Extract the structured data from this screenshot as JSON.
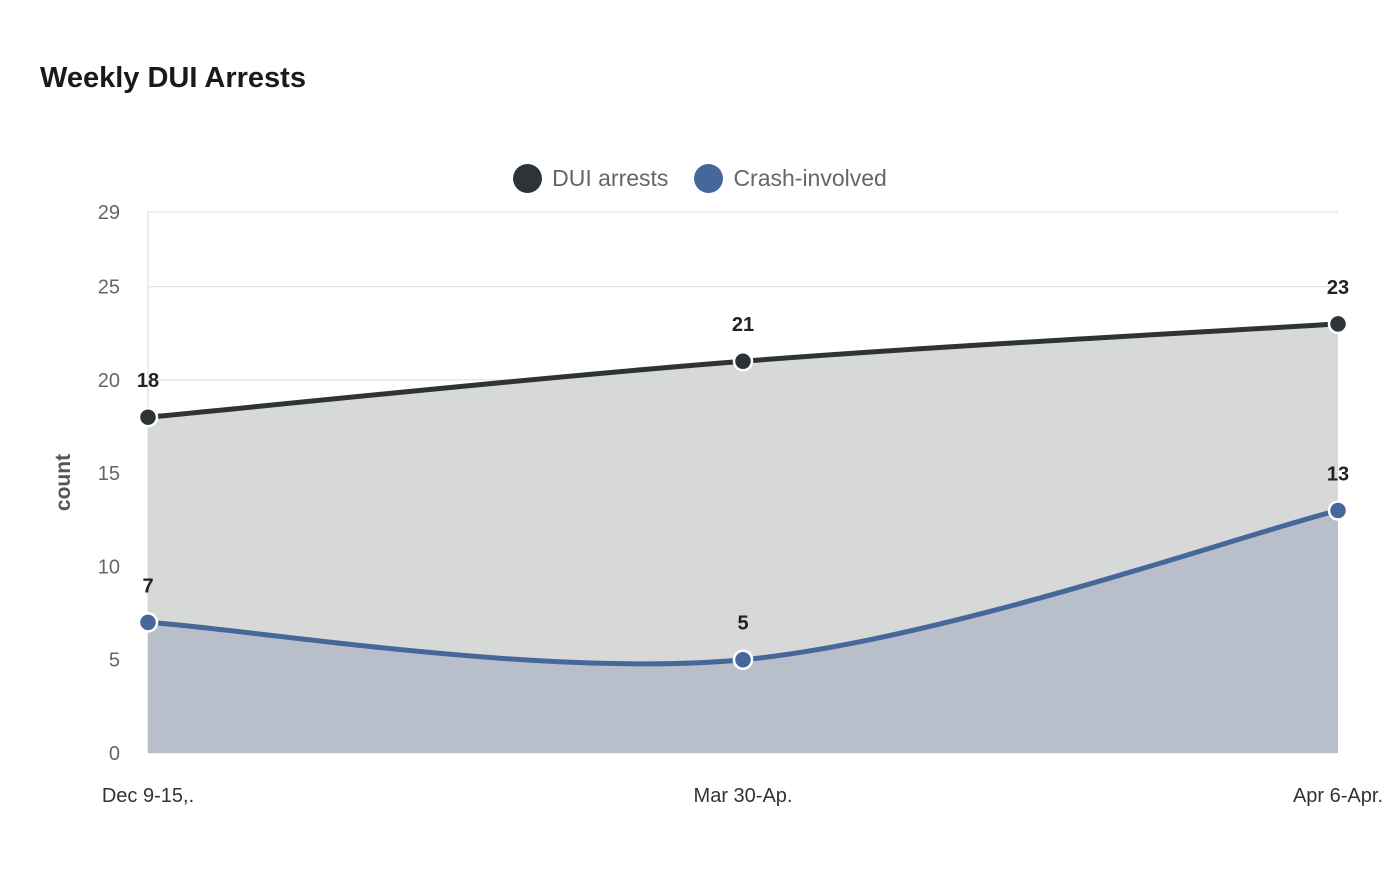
{
  "chart_data": {
    "type": "area",
    "title": "Weekly DUI Arrests",
    "xlabel": "",
    "ylabel": "count",
    "categories": [
      "Dec 9-15,.",
      "Mar 30-Ap.",
      "Apr 6-Apr."
    ],
    "ylim": [
      0,
      29
    ],
    "yticks": [
      0,
      5,
      10,
      15,
      20,
      25,
      29
    ],
    "grid": true,
    "legend_position": "top-center",
    "series": [
      {
        "name": "DUI arrests",
        "values": [
          18,
          21,
          23
        ],
        "color": "#2d3336",
        "fill": "#d5d7d6"
      },
      {
        "name": "Crash-involved",
        "values": [
          7,
          5,
          13
        ],
        "color": "#46679a",
        "fill": "#b6bec9"
      }
    ]
  }
}
